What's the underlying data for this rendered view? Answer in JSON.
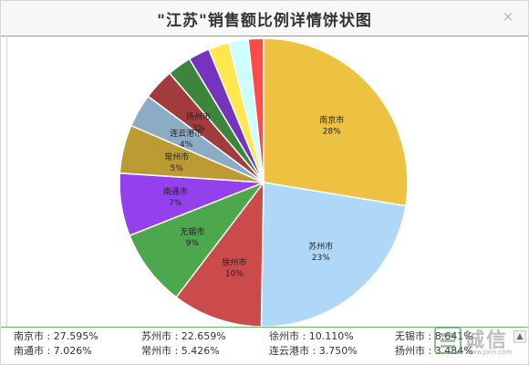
{
  "dialog": {
    "title": "\"江苏\"销售额比例详情饼状图",
    "close_label": "×"
  },
  "chart_data": {
    "type": "pie",
    "title": "\"江苏\"销售额比例详情饼状图",
    "start_angle": 0,
    "direction": "clockwise",
    "slices": [
      {
        "name": "南京市",
        "value": 27.595,
        "label": "28%",
        "color": "#edc240"
      },
      {
        "name": "苏州市",
        "value": 22.659,
        "label": "23%",
        "color": "#afd8f8"
      },
      {
        "name": "徐州市",
        "value": 10.11,
        "label": "10%",
        "color": "#cb4b4b"
      },
      {
        "name": "无锡市",
        "value": 8.641,
        "label": "9%",
        "color": "#4da74d"
      },
      {
        "name": "南通市",
        "value": 7.026,
        "label": "7%",
        "color": "#9440ed"
      },
      {
        "name": "常州市",
        "value": 5.426,
        "label": "5%",
        "color": "#bd9b33"
      },
      {
        "name": "连云港市",
        "value": 3.75,
        "label": "4%",
        "color": "#8cacc6"
      },
      {
        "name": "扬州市",
        "value": 3.484,
        "label": "3%",
        "color": "#a23c3c"
      },
      {
        "name": "",
        "value": 2.7,
        "label": "",
        "color": "#3d853d"
      },
      {
        "name": "",
        "value": 2.4,
        "label": "",
        "color": "#7633bd"
      },
      {
        "name": "",
        "value": 2.3,
        "label": "",
        "color": "#ffe84c"
      },
      {
        "name": "",
        "value": 2.2,
        "label": "",
        "color": "#ccffff"
      },
      {
        "name": "",
        "value": 1.709,
        "label": "",
        "color": "#ff4a4a"
      }
    ]
  },
  "legend": {
    "items": [
      "南京市 : 27.595%",
      "苏州市 : 22.659%",
      "徐州市 : 10.110%",
      "无锡市 : 8.641%",
      "南通市 : 7.026%",
      "常州市 : 5.426%",
      "连云港市 : 3.750%",
      "扬州市 : 3.484%"
    ]
  },
  "watermark": {
    "text": "诚信",
    "sub": "www.jixin.com"
  }
}
